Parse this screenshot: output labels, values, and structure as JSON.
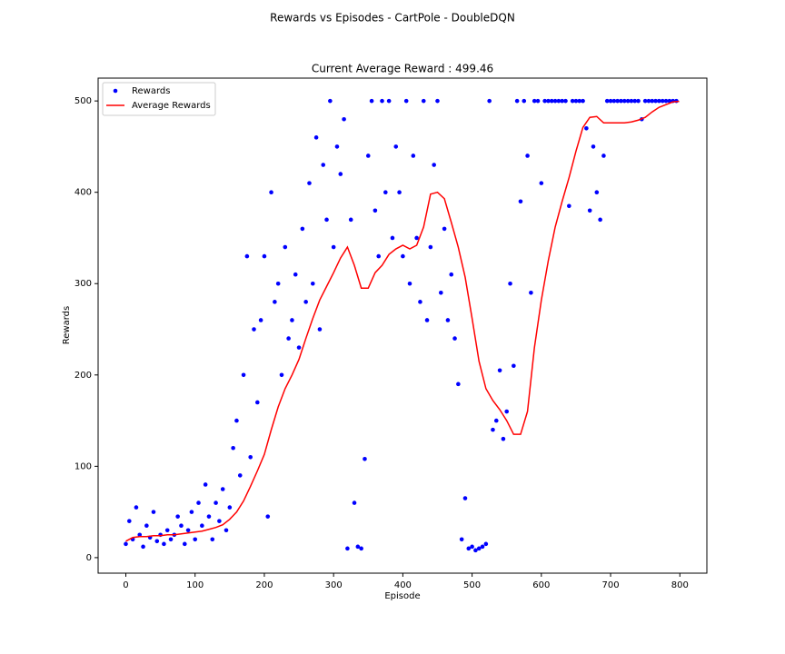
{
  "chart_data": {
    "type": "scatter_line",
    "suptitle": "Rewards vs Episodes - CartPole - DoubleDQN",
    "title": "Current Average Reward : 499.46",
    "xlabel": "Episode",
    "ylabel": "Rewards",
    "xlim": [
      -40,
      839
    ],
    "ylim": [
      -17,
      525
    ],
    "xticks": [
      0,
      100,
      200,
      300,
      400,
      500,
      600,
      700,
      800
    ],
    "yticks": [
      0,
      100,
      200,
      300,
      400,
      500
    ],
    "legend": "upper left",
    "series": [
      {
        "name": "Rewards",
        "kind": "scatter",
        "color": "#0000ff",
        "x": [
          0,
          5,
          10,
          15,
          20,
          25,
          30,
          35,
          40,
          45,
          50,
          55,
          60,
          65,
          70,
          75,
          80,
          85,
          90,
          95,
          100,
          105,
          110,
          115,
          120,
          125,
          130,
          135,
          140,
          145,
          150,
          155,
          160,
          165,
          170,
          175,
          180,
          185,
          190,
          195,
          200,
          205,
          210,
          215,
          220,
          225,
          230,
          235,
          240,
          245,
          250,
          255,
          260,
          265,
          270,
          275,
          280,
          285,
          290,
          295,
          300,
          305,
          310,
          315,
          320,
          325,
          330,
          335,
          340,
          345,
          350,
          355,
          360,
          365,
          370,
          375,
          380,
          385,
          390,
          395,
          400,
          405,
          410,
          415,
          420,
          425,
          430,
          435,
          440,
          445,
          450,
          455,
          460,
          465,
          470,
          475,
          480,
          485,
          490,
          495,
          500,
          505,
          510,
          515,
          520,
          525,
          530,
          535,
          540,
          545,
          550,
          555,
          560,
          565,
          570,
          575,
          580,
          585,
          590,
          595,
          600,
          605,
          610,
          615,
          620,
          625,
          630,
          635,
          640,
          645,
          650,
          655,
          660,
          665,
          670,
          675,
          680,
          685,
          690,
          695,
          700,
          705,
          710,
          715,
          720,
          725,
          730,
          735,
          740,
          745,
          750,
          755,
          760,
          765,
          770,
          775,
          780,
          785,
          790,
          795
        ],
        "values": [
          15,
          40,
          20,
          55,
          25,
          12,
          35,
          22,
          50,
          18,
          25,
          15,
          30,
          20,
          25,
          45,
          35,
          15,
          30,
          50,
          20,
          60,
          35,
          80,
          45,
          20,
          60,
          40,
          75,
          30,
          55,
          120,
          150,
          90,
          200,
          330,
          110,
          250,
          170,
          260,
          330,
          45,
          400,
          280,
          300,
          200,
          340,
          240,
          260,
          310,
          230,
          360,
          280,
          410,
          300,
          460,
          250,
          430,
          370,
          500,
          340,
          450,
          420,
          480,
          10,
          370,
          60,
          12,
          10,
          108,
          440,
          500,
          380,
          330,
          500,
          400,
          500,
          350,
          450,
          400,
          330,
          500,
          300,
          440,
          350,
          280,
          500,
          260,
          340,
          430,
          500,
          290,
          360,
          260,
          310,
          240,
          190,
          20,
          65,
          10,
          12,
          8,
          10,
          12,
          15,
          500,
          140,
          150,
          205,
          130,
          160,
          300,
          210,
          500,
          390,
          500,
          440,
          290,
          500,
          500,
          410,
          500,
          500,
          500,
          500,
          500,
          500,
          500,
          385,
          500,
          500,
          500,
          500,
          470,
          380,
          450,
          400,
          370,
          440,
          500,
          500,
          500,
          500,
          500,
          500,
          500,
          500,
          500,
          500,
          480,
          500,
          500,
          500,
          500,
          500,
          500,
          500,
          500,
          500,
          500
        ]
      },
      {
        "name": "Average Rewards",
        "kind": "line",
        "color": "#ff0000",
        "x": [
          0,
          10,
          20,
          30,
          40,
          50,
          60,
          70,
          80,
          90,
          100,
          110,
          120,
          130,
          140,
          150,
          160,
          170,
          180,
          190,
          200,
          210,
          220,
          230,
          240,
          250,
          260,
          270,
          280,
          290,
          300,
          310,
          320,
          330,
          340,
          350,
          360,
          370,
          380,
          390,
          400,
          410,
          420,
          430,
          440,
          450,
          460,
          470,
          480,
          490,
          500,
          510,
          520,
          530,
          540,
          550,
          560,
          570,
          580,
          590,
          600,
          610,
          620,
          630,
          640,
          650,
          660,
          670,
          680,
          690,
          700,
          710,
          720,
          730,
          740,
          750,
          760,
          770,
          780,
          790,
          799
        ],
        "values": [
          18,
          22,
          23,
          23,
          24,
          24,
          25,
          25,
          26,
          27,
          28,
          29,
          31,
          33,
          36,
          42,
          50,
          62,
          78,
          95,
          113,
          140,
          165,
          185,
          200,
          217,
          240,
          262,
          282,
          297,
          312,
          328,
          340,
          320,
          295,
          295,
          312,
          320,
          332,
          338,
          342,
          338,
          342,
          362,
          398,
          400,
          393,
          367,
          340,
          307,
          262,
          215,
          185,
          172,
          162,
          150,
          135,
          135,
          160,
          230,
          282,
          325,
          362,
          390,
          416,
          445,
          471,
          482,
          483,
          476,
          476,
          476,
          476,
          477,
          479,
          482,
          488,
          493,
          496,
          499,
          499.46
        ]
      }
    ]
  }
}
